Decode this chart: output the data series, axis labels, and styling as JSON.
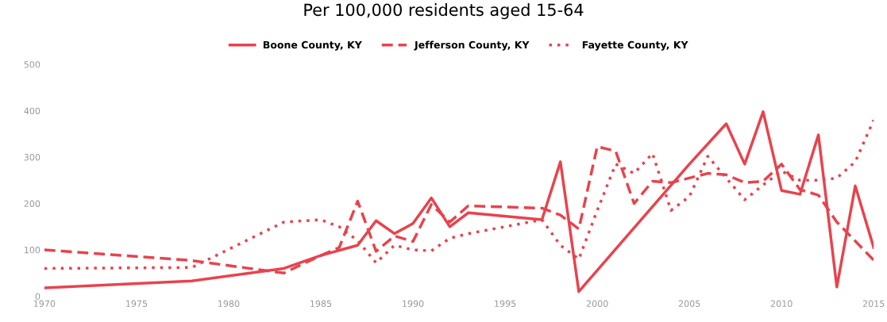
{
  "chart_data": {
    "type": "line",
    "subtitle": "Per 100,000 residents aged 15-64",
    "series": [
      {
        "name": "Boone County, KY",
        "color": "#e8434d",
        "line_style": "solid",
        "x": [
          1970,
          1978,
          1983,
          1985,
          1987,
          1988,
          1989,
          1990,
          1991,
          1992,
          1993,
          1997,
          1998,
          1999,
          2005,
          2007,
          2008,
          2009,
          2010,
          2011,
          2012,
          2013,
          2014,
          2015
        ],
        "values": [
          18,
          33,
          60,
          88,
          110,
          163,
          135,
          157,
          212,
          150,
          180,
          165,
          290,
          10,
          285,
          372,
          285,
          398,
          228,
          220,
          348,
          20,
          238,
          105
        ]
      },
      {
        "name": "Jefferson County, KY",
        "color": "#e8434d",
        "line_style": "dashed",
        "x": [
          1970,
          1978,
          1983,
          1985,
          1986,
          1987,
          1988,
          1989,
          1990,
          1991,
          1992,
          1993,
          1997,
          1998,
          1999,
          2000,
          2001,
          2002,
          2003,
          2004,
          2005,
          2006,
          2007,
          2008,
          2009,
          2010,
          2011,
          2012,
          2013,
          2015
        ],
        "values": [
          100,
          77,
          50,
          88,
          105,
          205,
          97,
          130,
          118,
          198,
          160,
          195,
          190,
          175,
          145,
          323,
          313,
          200,
          248,
          245,
          255,
          265,
          262,
          245,
          248,
          285,
          230,
          218,
          160,
          78
        ]
      },
      {
        "name": "Fayette County, KY",
        "color": "#e8434d",
        "line_style": "dotted",
        "x": [
          1970,
          1978,
          1983,
          1985,
          1986,
          1987,
          1988,
          1989,
          1990,
          1991,
          1992,
          1993,
          1997,
          1998,
          1999,
          2000,
          2001,
          2002,
          2003,
          2004,
          2005,
          2006,
          2007,
          2008,
          2009,
          2010,
          2011,
          2012,
          2013,
          2014,
          2015
        ],
        "values": [
          60,
          62,
          160,
          165,
          150,
          120,
          72,
          110,
          100,
          98,
          125,
          135,
          165,
          110,
          80,
          185,
          285,
          265,
          308,
          185,
          215,
          302,
          255,
          208,
          240,
          270,
          250,
          250,
          255,
          290,
          380
        ]
      }
    ],
    "xlim": [
      1970,
      2015
    ],
    "xticks": [
      1970,
      1975,
      1980,
      1985,
      1990,
      1995,
      2000,
      2005,
      2010,
      2015
    ],
    "ylim": [
      0,
      500
    ],
    "yticks": [
      0,
      100,
      200,
      300,
      400,
      500
    ],
    "grid": false,
    "legend": "top"
  }
}
